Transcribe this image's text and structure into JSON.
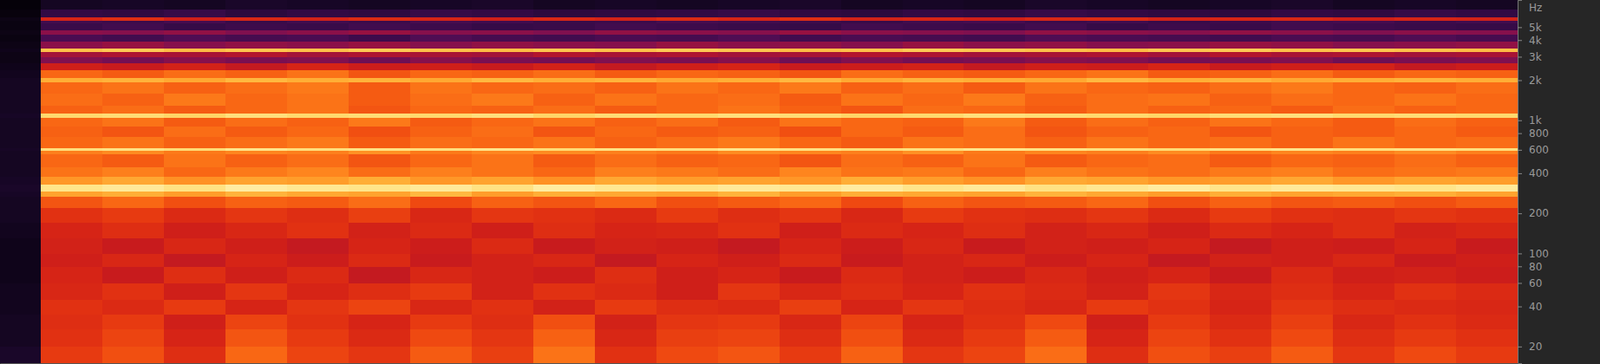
{
  "chart_data": {
    "type": "heatmap",
    "y_label": "Hz",
    "log": "y",
    "grid": false,
    "tick_labels": "y",
    "xlim": [
      0,
      18.5
    ],
    "ylim": [
      15,
      8000
    ],
    "yticks": [
      {
        "value": 5000,
        "label": "5k"
      },
      {
        "value": 4000,
        "label": "4k"
      },
      {
        "value": 3000,
        "label": "3k"
      },
      {
        "value": 2000,
        "label": "2k"
      },
      {
        "value": 1000,
        "label": "1k"
      },
      800,
      600,
      400,
      200,
      100,
      80,
      60,
      40,
      20
    ],
    "zlim": [
      0,
      100
    ],
    "x": [
      0,
      0.5,
      1.25,
      2,
      2.75,
      3.5,
      4.25,
      5,
      5.75,
      6.5,
      7.25,
      8,
      8.75,
      9.5,
      10.25,
      11,
      11.75,
      12.5,
      13.25,
      14,
      14.75,
      15.5,
      16.25,
      17,
      17.75,
      18.5
    ],
    "y": [
      15,
      20,
      27,
      35,
      45,
      60,
      80,
      100,
      130,
      170,
      220,
      270,
      295,
      330,
      380,
      450,
      560,
      590,
      620,
      750,
      900,
      1050,
      1130,
      1300,
      1600,
      1950,
      2100,
      2400,
      2700,
      3000,
      3300,
      3500,
      3900,
      4400,
      4800,
      5400,
      5600,
      6000,
      6800,
      8000
    ],
    "z": [
      [
        10,
        58,
        62,
        55,
        66,
        60,
        57,
        64,
        59,
        68,
        56,
        61,
        63,
        58,
        65,
        57,
        60,
        67,
        55,
        62,
        59,
        64,
        57,
        61,
        58
      ],
      [
        8,
        56,
        60,
        52,
        63,
        58,
        54,
        61,
        57,
        65,
        53,
        59,
        60,
        55,
        62,
        54,
        58,
        64,
        52,
        60,
        56,
        61,
        55,
        58,
        56
      ],
      [
        8,
        55,
        58,
        50,
        60,
        56,
        52,
        58,
        55,
        62,
        51,
        57,
        58,
        53,
        60,
        52,
        56,
        61,
        50,
        58,
        54,
        59,
        53,
        56,
        54
      ],
      [
        7,
        56,
        54,
        58,
        52,
        57,
        60,
        53,
        56,
        51,
        58,
        55,
        54,
        59,
        52,
        57,
        55,
        53,
        58,
        56,
        52,
        57,
        55,
        54,
        53
      ],
      [
        7,
        53,
        56,
        50,
        57,
        52,
        55,
        58,
        51,
        56,
        54,
        50,
        57,
        53,
        55,
        52,
        56,
        54,
        51,
        57,
        53,
        55,
        52,
        56,
        54
      ],
      [
        6,
        52,
        48,
        55,
        50,
        54,
        47,
        53,
        51,
        49,
        55,
        50,
        52,
        48,
        54,
        51,
        49,
        53,
        50,
        52,
        48,
        54,
        50,
        51,
        49
      ],
      [
        6,
        50,
        53,
        47,
        52,
        49,
        54,
        48,
        51,
        53,
        47,
        52,
        50,
        54,
        48,
        51,
        53,
        49,
        52,
        47,
        51,
        50,
        53,
        48,
        50
      ],
      [
        6,
        51,
        48,
        53,
        50,
        47,
        52,
        49,
        54,
        48,
        51,
        50,
        47,
        52,
        49,
        53,
        48,
        51,
        50,
        52,
        47,
        50,
        49,
        52,
        48
      ],
      [
        7,
        52,
        55,
        50,
        53,
        56,
        51,
        54,
        50,
        55,
        52,
        53,
        56,
        50,
        54,
        52,
        55,
        51,
        53,
        50,
        54,
        52,
        55,
        51,
        53
      ],
      [
        8,
        56,
        58,
        54,
        57,
        55,
        59,
        53,
        57,
        56,
        54,
        58,
        55,
        57,
        53,
        58,
        56,
        55,
        57,
        54,
        58,
        56,
        55,
        57,
        56
      ],
      [
        8,
        63,
        66,
        62,
        65,
        64,
        67,
        61,
        65,
        63,
        66,
        62,
        64,
        66,
        61,
        65,
        63,
        64,
        66,
        62,
        65,
        63,
        64,
        62,
        64
      ],
      [
        9,
        76,
        78,
        75,
        79,
        77,
        76,
        80,
        75,
        78,
        77,
        76,
        79,
        75,
        78,
        77,
        76,
        79,
        77,
        75,
        78,
        76,
        77,
        78,
        76
      ],
      [
        10,
        92,
        94,
        91,
        95,
        93,
        92,
        94,
        91,
        95,
        93,
        92,
        94,
        93,
        95,
        92,
        94,
        91,
        93,
        95,
        92,
        94,
        93,
        92,
        94
      ],
      [
        9,
        74,
        77,
        73,
        76,
        75,
        78,
        74,
        76,
        73,
        77,
        75,
        76,
        74,
        78,
        75,
        73,
        77,
        76,
        74,
        75,
        77,
        74,
        76,
        75
      ],
      [
        8,
        68,
        70,
        66,
        69,
        71,
        67,
        70,
        68,
        66,
        70,
        69,
        67,
        71,
        68,
        69,
        66,
        70,
        68,
        67,
        69,
        70,
        67,
        68,
        69
      ],
      [
        8,
        66,
        64,
        68,
        65,
        67,
        63,
        66,
        68,
        64,
        67,
        65,
        66,
        63,
        67,
        65,
        68,
        64,
        66,
        67,
        64,
        66,
        65,
        67,
        65
      ],
      [
        8,
        70,
        72,
        69,
        71,
        70,
        73,
        69,
        71,
        72,
        70,
        69,
        72,
        71,
        70,
        73,
        69,
        71,
        70,
        72,
        69,
        71,
        70,
        72,
        70
      ],
      [
        9,
        90,
        91,
        89,
        92,
        90,
        91,
        90,
        92,
        89,
        91,
        90,
        92,
        91,
        89,
        90,
        92,
        91,
        90,
        89,
        91,
        92,
        90,
        91,
        90
      ],
      [
        8,
        66,
        68,
        65,
        67,
        69,
        64,
        67,
        66,
        68,
        65,
        67,
        69,
        66,
        64,
        68,
        67,
        65,
        68,
        66,
        67,
        65,
        68,
        66,
        67
      ],
      [
        8,
        65,
        63,
        67,
        64,
        66,
        62,
        65,
        67,
        63,
        66,
        64,
        65,
        62,
        66,
        64,
        67,
        63,
        65,
        66,
        63,
        65,
        64,
        66,
        64
      ],
      [
        8,
        66,
        68,
        64,
        67,
        65,
        69,
        64,
        66,
        68,
        65,
        67,
        64,
        68,
        66,
        65,
        69,
        64,
        67,
        65,
        68,
        66,
        64,
        67,
        65
      ],
      [
        9,
        88,
        89,
        87,
        90,
        88,
        89,
        88,
        90,
        87,
        89,
        88,
        90,
        89,
        87,
        88,
        90,
        89,
        88,
        87,
        89,
        90,
        88,
        89,
        88
      ],
      [
        8,
        65,
        67,
        64,
        66,
        68,
        63,
        66,
        65,
        67,
        64,
        66,
        68,
        65,
        63,
        67,
        66,
        64,
        67,
        65,
        66,
        64,
        67,
        65,
        66
      ],
      [
        8,
        67,
        65,
        69,
        66,
        68,
        64,
        67,
        69,
        65,
        68,
        66,
        67,
        64,
        68,
        66,
        69,
        65,
        67,
        68,
        65,
        67,
        66,
        68,
        66
      ],
      [
        8,
        66,
        68,
        65,
        67,
        69,
        64,
        68,
        66,
        67,
        65,
        68,
        66,
        69,
        65,
        67,
        64,
        68,
        66,
        65,
        67,
        69,
        66,
        65,
        67
      ],
      [
        8,
        78,
        79,
        77,
        80,
        78,
        79,
        77,
        80,
        78,
        79,
        77,
        78,
        80,
        77,
        79,
        78,
        77,
        80,
        78,
        79,
        77,
        78,
        79,
        78
      ],
      [
        7,
        66,
        64,
        67,
        65,
        68,
        63,
        66,
        65,
        67,
        64,
        66,
        65,
        63,
        67,
        65,
        64,
        66,
        68,
        64,
        65,
        67,
        64,
        66,
        65
      ],
      [
        6,
        50,
        48,
        51,
        47,
        52,
        49,
        50,
        48,
        51,
        47,
        50,
        52,
        48,
        49,
        51,
        47,
        50,
        49,
        52,
        48,
        50,
        51,
        47,
        49
      ],
      [
        5,
        34,
        32,
        35,
        33,
        34,
        31,
        35,
        33,
        32,
        34,
        33,
        35,
        31,
        34,
        32,
        33,
        35,
        34,
        32,
        33,
        34,
        31,
        33,
        34
      ],
      [
        5,
        40,
        42,
        41,
        43,
        40,
        42,
        41,
        40,
        43,
        41,
        42,
        40,
        41,
        43,
        42,
        40,
        41,
        42,
        40,
        43,
        41,
        42,
        40,
        41
      ],
      [
        6,
        82,
        84,
        81,
        83,
        82,
        84,
        82,
        81,
        83,
        82,
        84,
        83,
        81,
        82,
        84,
        83,
        82,
        81,
        83,
        84,
        82,
        83,
        82,
        81
      ],
      [
        5,
        36,
        38,
        35,
        37,
        36,
        38,
        35,
        37,
        36,
        35,
        38,
        36,
        37,
        35,
        38,
        36,
        37,
        35,
        36,
        38,
        37,
        35,
        36,
        37
      ],
      [
        4,
        24,
        22,
        25,
        23,
        24,
        21,
        25,
        23,
        22,
        24,
        23,
        25,
        22,
        24,
        23,
        22,
        25,
        24,
        23,
        22,
        24,
        23,
        25,
        23
      ],
      [
        5,
        36,
        35,
        37,
        34,
        36,
        38,
        35,
        36,
        34,
        37,
        36,
        35,
        38,
        36,
        35,
        34,
        37,
        36,
        35,
        37,
        36,
        34,
        36,
        35
      ],
      [
        4,
        20,
        22,
        19,
        21,
        20,
        22,
        21,
        19,
        20,
        22,
        21,
        20,
        19,
        22,
        21,
        20,
        22,
        19,
        21,
        20,
        22,
        21,
        20,
        19
      ],
      [
        4,
        22,
        21,
        23,
        20,
        22,
        21,
        23,
        22,
        20,
        21,
        23,
        22,
        21,
        20,
        22,
        23,
        21,
        22,
        20,
        21,
        22,
        23,
        21,
        22
      ],
      [
        5,
        52,
        55,
        50,
        53,
        51,
        54,
        52,
        50,
        53,
        51,
        54,
        52,
        55,
        51,
        52,
        50,
        53,
        54,
        51,
        52,
        53,
        50,
        52,
        51
      ],
      [
        3,
        18,
        17,
        19,
        16,
        18,
        17,
        19,
        18,
        16,
        17,
        18,
        19,
        17,
        16,
        18,
        17,
        19,
        18,
        17,
        16,
        18,
        17,
        19,
        18
      ],
      [
        2,
        8,
        9,
        8,
        10,
        9,
        8,
        9,
        10,
        8,
        9,
        8,
        9,
        10,
        8,
        9,
        8,
        10,
        9,
        8,
        9,
        10,
        8,
        9,
        8
      ]
    ]
  }
}
